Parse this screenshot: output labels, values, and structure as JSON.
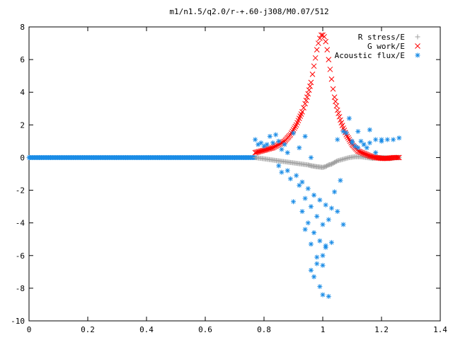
{
  "chart_data": {
    "type": "scatter",
    "title": "m1/n1.5/q2.0/r-+.60-j308/M0.07/512",
    "xlabel": "",
    "ylabel": "",
    "xlim": [
      0,
      1.4
    ],
    "ylim": [
      -10,
      8
    ],
    "x_ticks": [
      "0",
      "0.2",
      "0.4",
      "0.6",
      "0.8",
      "1",
      "1.2",
      "1.4"
    ],
    "x_tick_values": [
      0,
      0.2,
      0.4,
      0.6,
      0.8,
      1.0,
      1.2,
      1.4
    ],
    "y_ticks": [
      "-10",
      "-8",
      "-6",
      "-4",
      "-2",
      "0",
      "2",
      "4",
      "6",
      "8"
    ],
    "y_tick_values": [
      -10,
      -8,
      -6,
      -4,
      -2,
      0,
      2,
      4,
      6,
      8
    ],
    "grid": false,
    "legend_position": "top-right",
    "series": [
      {
        "name": "R stress/E",
        "marker": "plus",
        "color": "#a0a0a0",
        "x": [
          0.77,
          0.79,
          0.81,
          0.83,
          0.85,
          0.87,
          0.89,
          0.91,
          0.93,
          0.95,
          0.96,
          0.97,
          0.98,
          0.99,
          1.0,
          1.01,
          1.02,
          1.03,
          1.04,
          1.05,
          1.07,
          1.09,
          1.11,
          1.13,
          1.15,
          1.17,
          1.19,
          1.21,
          1.23,
          1.25,
          1.26
        ],
        "y": [
          0.0,
          -0.05,
          -0.1,
          -0.15,
          -0.2,
          -0.25,
          -0.3,
          -0.35,
          -0.4,
          -0.45,
          -0.5,
          -0.53,
          -0.56,
          -0.58,
          -0.6,
          -0.55,
          -0.45,
          -0.4,
          -0.3,
          -0.2,
          -0.1,
          0.0,
          0.05,
          0.05,
          0.0,
          -0.05,
          0.0,
          0.0,
          -0.05,
          0.0,
          0.0
        ]
      },
      {
        "name": "G work/E",
        "marker": "cross",
        "color": "#ff0000",
        "x": [
          0.77,
          0.79,
          0.81,
          0.83,
          0.85,
          0.87,
          0.88,
          0.89,
          0.9,
          0.91,
          0.92,
          0.93,
          0.94,
          0.95,
          0.96,
          0.965,
          0.97,
          0.975,
          0.98,
          0.985,
          0.99,
          0.995,
          1.0,
          1.005,
          1.01,
          1.015,
          1.02,
          1.025,
          1.03,
          1.035,
          1.04,
          1.05,
          1.06,
          1.07,
          1.08,
          1.09,
          1.1,
          1.11,
          1.12,
          1.14,
          1.16,
          1.18,
          1.2,
          1.22,
          1.24,
          1.26
        ],
        "y": [
          0.3,
          0.4,
          0.5,
          0.6,
          0.8,
          1.0,
          1.2,
          1.4,
          1.7,
          2.0,
          2.4,
          2.8,
          3.3,
          3.9,
          4.6,
          5.1,
          5.6,
          6.1,
          6.6,
          7.0,
          7.3,
          7.5,
          7.5,
          7.4,
          7.1,
          6.6,
          6.0,
          5.4,
          4.8,
          4.2,
          3.7,
          2.9,
          2.3,
          1.8,
          1.4,
          1.1,
          0.8,
          0.6,
          0.4,
          0.25,
          0.1,
          0.0,
          -0.05,
          -0.05,
          0.0,
          0.0
        ]
      },
      {
        "name": "Acoustic flux/E",
        "marker": "star",
        "color": "#1a8ce6",
        "x": [
          0.77,
          0.79,
          0.81,
          0.83,
          0.85,
          0.87,
          0.78,
          0.8,
          0.82,
          0.84,
          0.86,
          0.88,
          0.9,
          0.92,
          0.94,
          0.96,
          0.85,
          0.88,
          0.91,
          0.93,
          0.95,
          0.97,
          0.99,
          1.01,
          1.03,
          1.05,
          1.07,
          0.86,
          0.89,
          0.92,
          0.94,
          0.96,
          0.98,
          1.0,
          1.02,
          1.04,
          1.06,
          0.9,
          0.93,
          0.95,
          0.97,
          0.99,
          1.01,
          1.03,
          0.94,
          0.96,
          0.98,
          1.0,
          0.96,
          0.98,
          1.0,
          1.01,
          0.97,
          0.99,
          1.0,
          1.02,
          1.08,
          1.1,
          1.12,
          1.14,
          1.16,
          1.18,
          1.2,
          1.22,
          1.24,
          1.26,
          1.1,
          1.12,
          1.14,
          1.16,
          1.18,
          1.2,
          1.05,
          1.07,
          1.09,
          1.11,
          1.13,
          1.15
        ],
        "y": [
          1.1,
          0.9,
          0.8,
          0.9,
          1.0,
          0.8,
          0.8,
          0.7,
          1.3,
          1.4,
          0.5,
          0.3,
          1.5,
          0.6,
          1.3,
          0.0,
          -0.5,
          -0.8,
          -1.1,
          -1.5,
          -1.9,
          -2.3,
          -2.6,
          -2.9,
          -3.1,
          -3.3,
          -4.1,
          -0.9,
          -1.3,
          -1.7,
          -2.5,
          -3.0,
          -3.6,
          -4.1,
          -3.8,
          -2.1,
          -1.4,
          -2.7,
          -3.3,
          -4.0,
          -4.6,
          -5.1,
          -5.5,
          -5.2,
          -4.4,
          -5.3,
          -6.1,
          -6.6,
          -6.9,
          -6.5,
          -6.0,
          -5.4,
          -7.3,
          -7.9,
          -8.4,
          -8.5,
          1.5,
          0.9,
          0.6,
          0.8,
          0.9,
          1.1,
          1.0,
          1.1,
          1.1,
          1.2,
          1.0,
          1.6,
          0.8,
          1.7,
          0.3,
          1.1,
          1.1,
          1.6,
          2.4,
          0.7,
          1.0,
          0.6
        ]
      }
    ]
  }
}
